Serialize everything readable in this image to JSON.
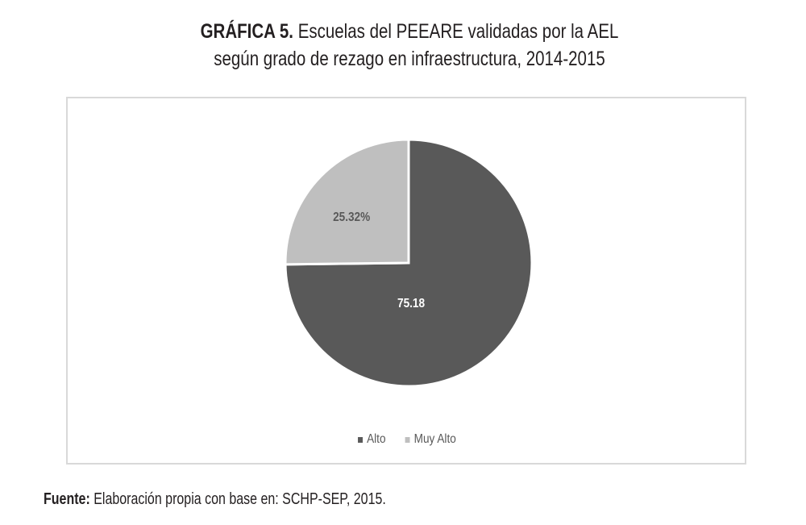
{
  "title": {
    "lead": "GRÁFICA 5.",
    "line1_rest": " Escuelas del PEEARE validadas por la AEL",
    "line2": "según grado de rezago en infraestructura, 2014-2015"
  },
  "source": {
    "lead": "Fuente:",
    "text": " Elaboración propia con base en: SCHP-SEP, 2015."
  },
  "colors": {
    "alto": "#595959",
    "muy_alto": "#bfbfbf",
    "frame": "#d9d9d9"
  },
  "legend": {
    "items": [
      {
        "label": "Alto",
        "color": "#595959"
      },
      {
        "label": "Muy Alto",
        "color": "#bfbfbf"
      }
    ]
  },
  "slice_labels": {
    "alto": "75.18",
    "muy_alto": "25.32%"
  },
  "chart_data": {
    "type": "pie",
    "title": "GRÁFICA 5. Escuelas del PEEARE validadas por la AEL según grado de rezago en infraestructura, 2014-2015",
    "categories": [
      "Alto",
      "Muy Alto"
    ],
    "values": [
      75.18,
      25.32
    ],
    "data_labels": [
      "75.18",
      "25.32%"
    ],
    "colors": [
      "#595959",
      "#bfbfbf"
    ],
    "legend_position": "bottom",
    "source": "Fuente: Elaboración propia con base en: SCHP-SEP, 2015."
  }
}
